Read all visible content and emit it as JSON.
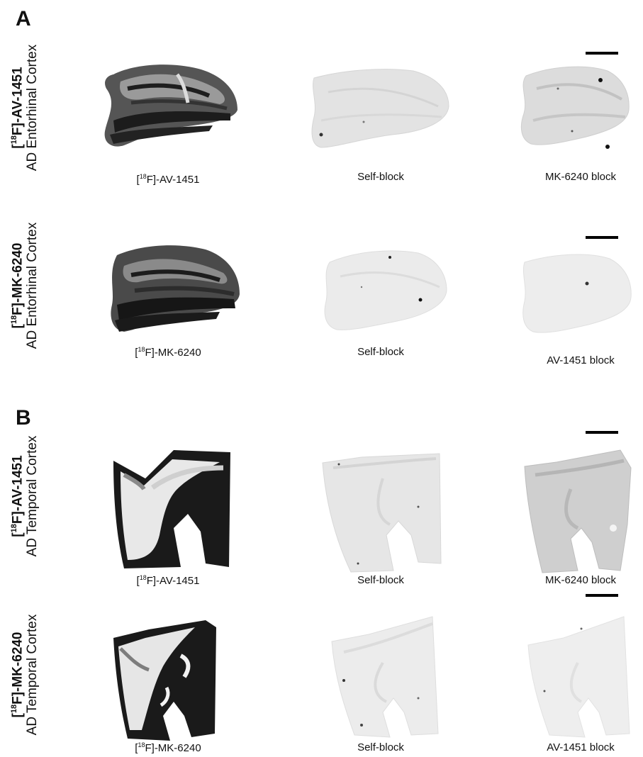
{
  "panels": [
    {
      "letter": "A",
      "rows": [
        {
          "label_tracer_bracket": "[",
          "label_tracer_iso": "18",
          "label_tracer_rest": "F]-AV-1451",
          "label_region": "AD Entorhinal Cortex",
          "captions": [
            {
              "iso_pre": "[",
              "iso": "18",
              "iso_post": "F]-AV-1451"
            },
            {
              "text": "Self-block"
            },
            {
              "text": "MK-6240 block"
            }
          ]
        },
        {
          "label_tracer_bracket": "[",
          "label_tracer_iso": "18",
          "label_tracer_rest": "F]-MK-6240",
          "label_region": "AD Entorhinal Cortex",
          "captions": [
            {
              "iso_pre": "[",
              "iso": "18",
              "iso_post": "F]-MK-6240"
            },
            {
              "text": "Self-block"
            },
            {
              "text": "AV-1451 block"
            }
          ]
        }
      ]
    },
    {
      "letter": "B",
      "rows": [
        {
          "label_tracer_bracket": "[",
          "label_tracer_iso": "18",
          "label_tracer_rest": "F]-AV-1451",
          "label_region": "AD Temporal Cortex",
          "captions": [
            {
              "iso_pre": "[",
              "iso": "18",
              "iso_post": "F]-AV-1451"
            },
            {
              "text": "Self-block"
            },
            {
              "text": "MK-6240 block"
            }
          ]
        },
        {
          "label_tracer_bracket": "[",
          "label_tracer_iso": "18",
          "label_tracer_rest": "F]-MK-6240",
          "label_region": "AD Temporal Cortex",
          "captions": [
            {
              "iso_pre": "[",
              "iso": "18",
              "iso_post": "F]-MK-6240"
            },
            {
              "text": "Self-block"
            },
            {
              "text": "AV-1451 block"
            }
          ]
        }
      ]
    }
  ],
  "colors": {
    "dark_stain": "#1a1a1a",
    "mid_stain": "#8a8a8a",
    "light_tissue": "#e6e6e6",
    "faint_tissue": "#ececec",
    "background": "#ffffff"
  }
}
